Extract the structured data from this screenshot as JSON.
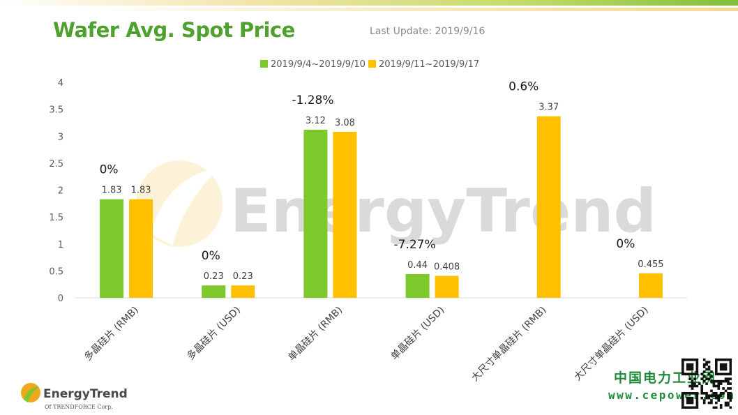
{
  "header": {
    "title": "Wafer Avg. Spot Price",
    "last_update": "Last Update: 2019/9/16"
  },
  "watermark": {
    "text": "EnergyTrend"
  },
  "footer": {
    "brand_name": "EnergyTrend",
    "brand_sub": "Of TRENDFORCE Corp.",
    "site_cn": "中国电力工业网",
    "site_url": "www.cepower.com"
  },
  "colors": {
    "accent_green": "#4ea12d",
    "series1": "#7dc82a",
    "series2": "#ffc000",
    "axis": "#d9d9d9"
  },
  "chart_data": {
    "type": "bar",
    "title": "Wafer Avg. Spot Price",
    "xlabel": "",
    "ylabel": "",
    "ylim": [
      0,
      4
    ],
    "yticks": [
      "0",
      "0.5",
      "1",
      "1.5",
      "2",
      "2.5",
      "3",
      "3.5",
      "4"
    ],
    "grid": false,
    "legend_position": "top",
    "categories": [
      "多晶硅片 (RMB)",
      "多晶硅片 (USD)",
      "单晶硅片 (RMB)",
      "单晶硅片 (USD)",
      "大尺寸单晶硅片 (RMB)",
      "大尺寸单晶硅片 (USD)"
    ],
    "series": [
      {
        "name": "2019/9/4~2019/9/10",
        "values": [
          1.83,
          0.23,
          3.12,
          0.44,
          null,
          null
        ],
        "labels": [
          "1.83",
          "0.23",
          "3.12",
          "0.44",
          "",
          ""
        ]
      },
      {
        "name": "2019/9/11~2019/9/17",
        "values": [
          1.83,
          0.23,
          3.08,
          0.408,
          3.37,
          0.455
        ],
        "labels": [
          "1.83",
          "0.23",
          "3.08",
          "0.408",
          "3.37",
          "0.455"
        ]
      }
    ],
    "change_labels": [
      "0%",
      "0%",
      "-1.28%",
      "-7.27%",
      "0.6%",
      "0%"
    ]
  }
}
